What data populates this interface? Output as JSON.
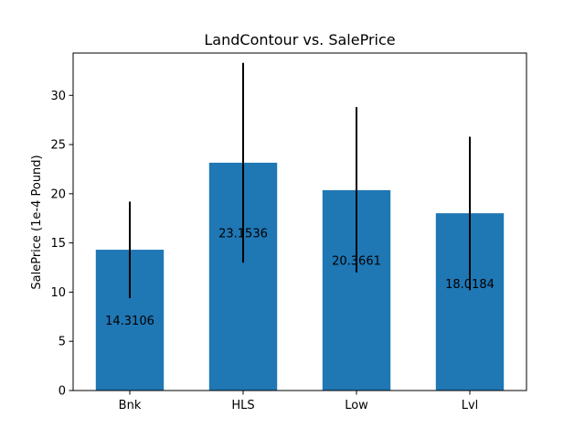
{
  "chart_data": {
    "type": "bar",
    "title": "LandContour vs. SalePrice",
    "xlabel": "",
    "ylabel": "SalePrice (1e-4 Pound)",
    "categories": [
      "Bnk",
      "HLS",
      "Low",
      "Lvl"
    ],
    "values": [
      14.3106,
      23.1536,
      20.3661,
      18.0184
    ],
    "value_labels": [
      "14.3106",
      "23.1536",
      "20.3661",
      "18.0184"
    ],
    "error_low": [
      9.4,
      13.0,
      12.0,
      10.2
    ],
    "error_high": [
      19.2,
      33.3,
      28.8,
      25.8
    ],
    "ylim": [
      0,
      34.3
    ],
    "yticks": [
      0,
      5,
      10,
      15,
      20,
      25,
      30
    ],
    "grid": false,
    "colors": {
      "bar": "#1f77b4",
      "error": "#000000",
      "axes": "#000000"
    }
  }
}
